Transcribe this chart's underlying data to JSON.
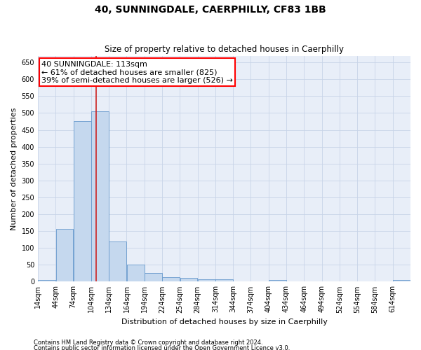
{
  "title": "40, SUNNINGDALE, CAERPHILLY, CF83 1BB",
  "subtitle": "Size of property relative to detached houses in Caerphilly",
  "xlabel": "Distribution of detached houses by size in Caerphilly",
  "ylabel": "Number of detached properties",
  "bin_edges": [
    14,
    44,
    74,
    104,
    134,
    164,
    194,
    224,
    254,
    284,
    314,
    344,
    374,
    404,
    434,
    464,
    494,
    524,
    554,
    584,
    614,
    644
  ],
  "bar_heights": [
    5,
    157,
    477,
    505,
    120,
    50,
    25,
    13,
    12,
    8,
    8,
    0,
    0,
    5,
    0,
    0,
    0,
    0,
    0,
    0,
    5
  ],
  "bar_color": "#c5d8ee",
  "bar_edgecolor": "#6699cc",
  "vline_x": 113,
  "vline_color": "#cc2222",
  "annotation_line1": "40 SUNNINGDALE: 113sqm",
  "annotation_line2": "← 61% of detached houses are smaller (825)",
  "annotation_line3": "39% of semi-detached houses are larger (526) →",
  "ylim": [
    0,
    670
  ],
  "yticks": [
    0,
    50,
    100,
    150,
    200,
    250,
    300,
    350,
    400,
    450,
    500,
    550,
    600,
    650
  ],
  "grid_color": "#c8d4e8",
  "bg_color": "#e8eef8",
  "footer_line1": "Contains HM Land Registry data © Crown copyright and database right 2024.",
  "footer_line2": "Contains public sector information licensed under the Open Government Licence v3.0.",
  "title_fontsize": 10,
  "subtitle_fontsize": 8.5,
  "xlabel_fontsize": 8,
  "ylabel_fontsize": 8,
  "tick_fontsize": 7,
  "annot_fontsize": 8,
  "footer_fontsize": 6
}
